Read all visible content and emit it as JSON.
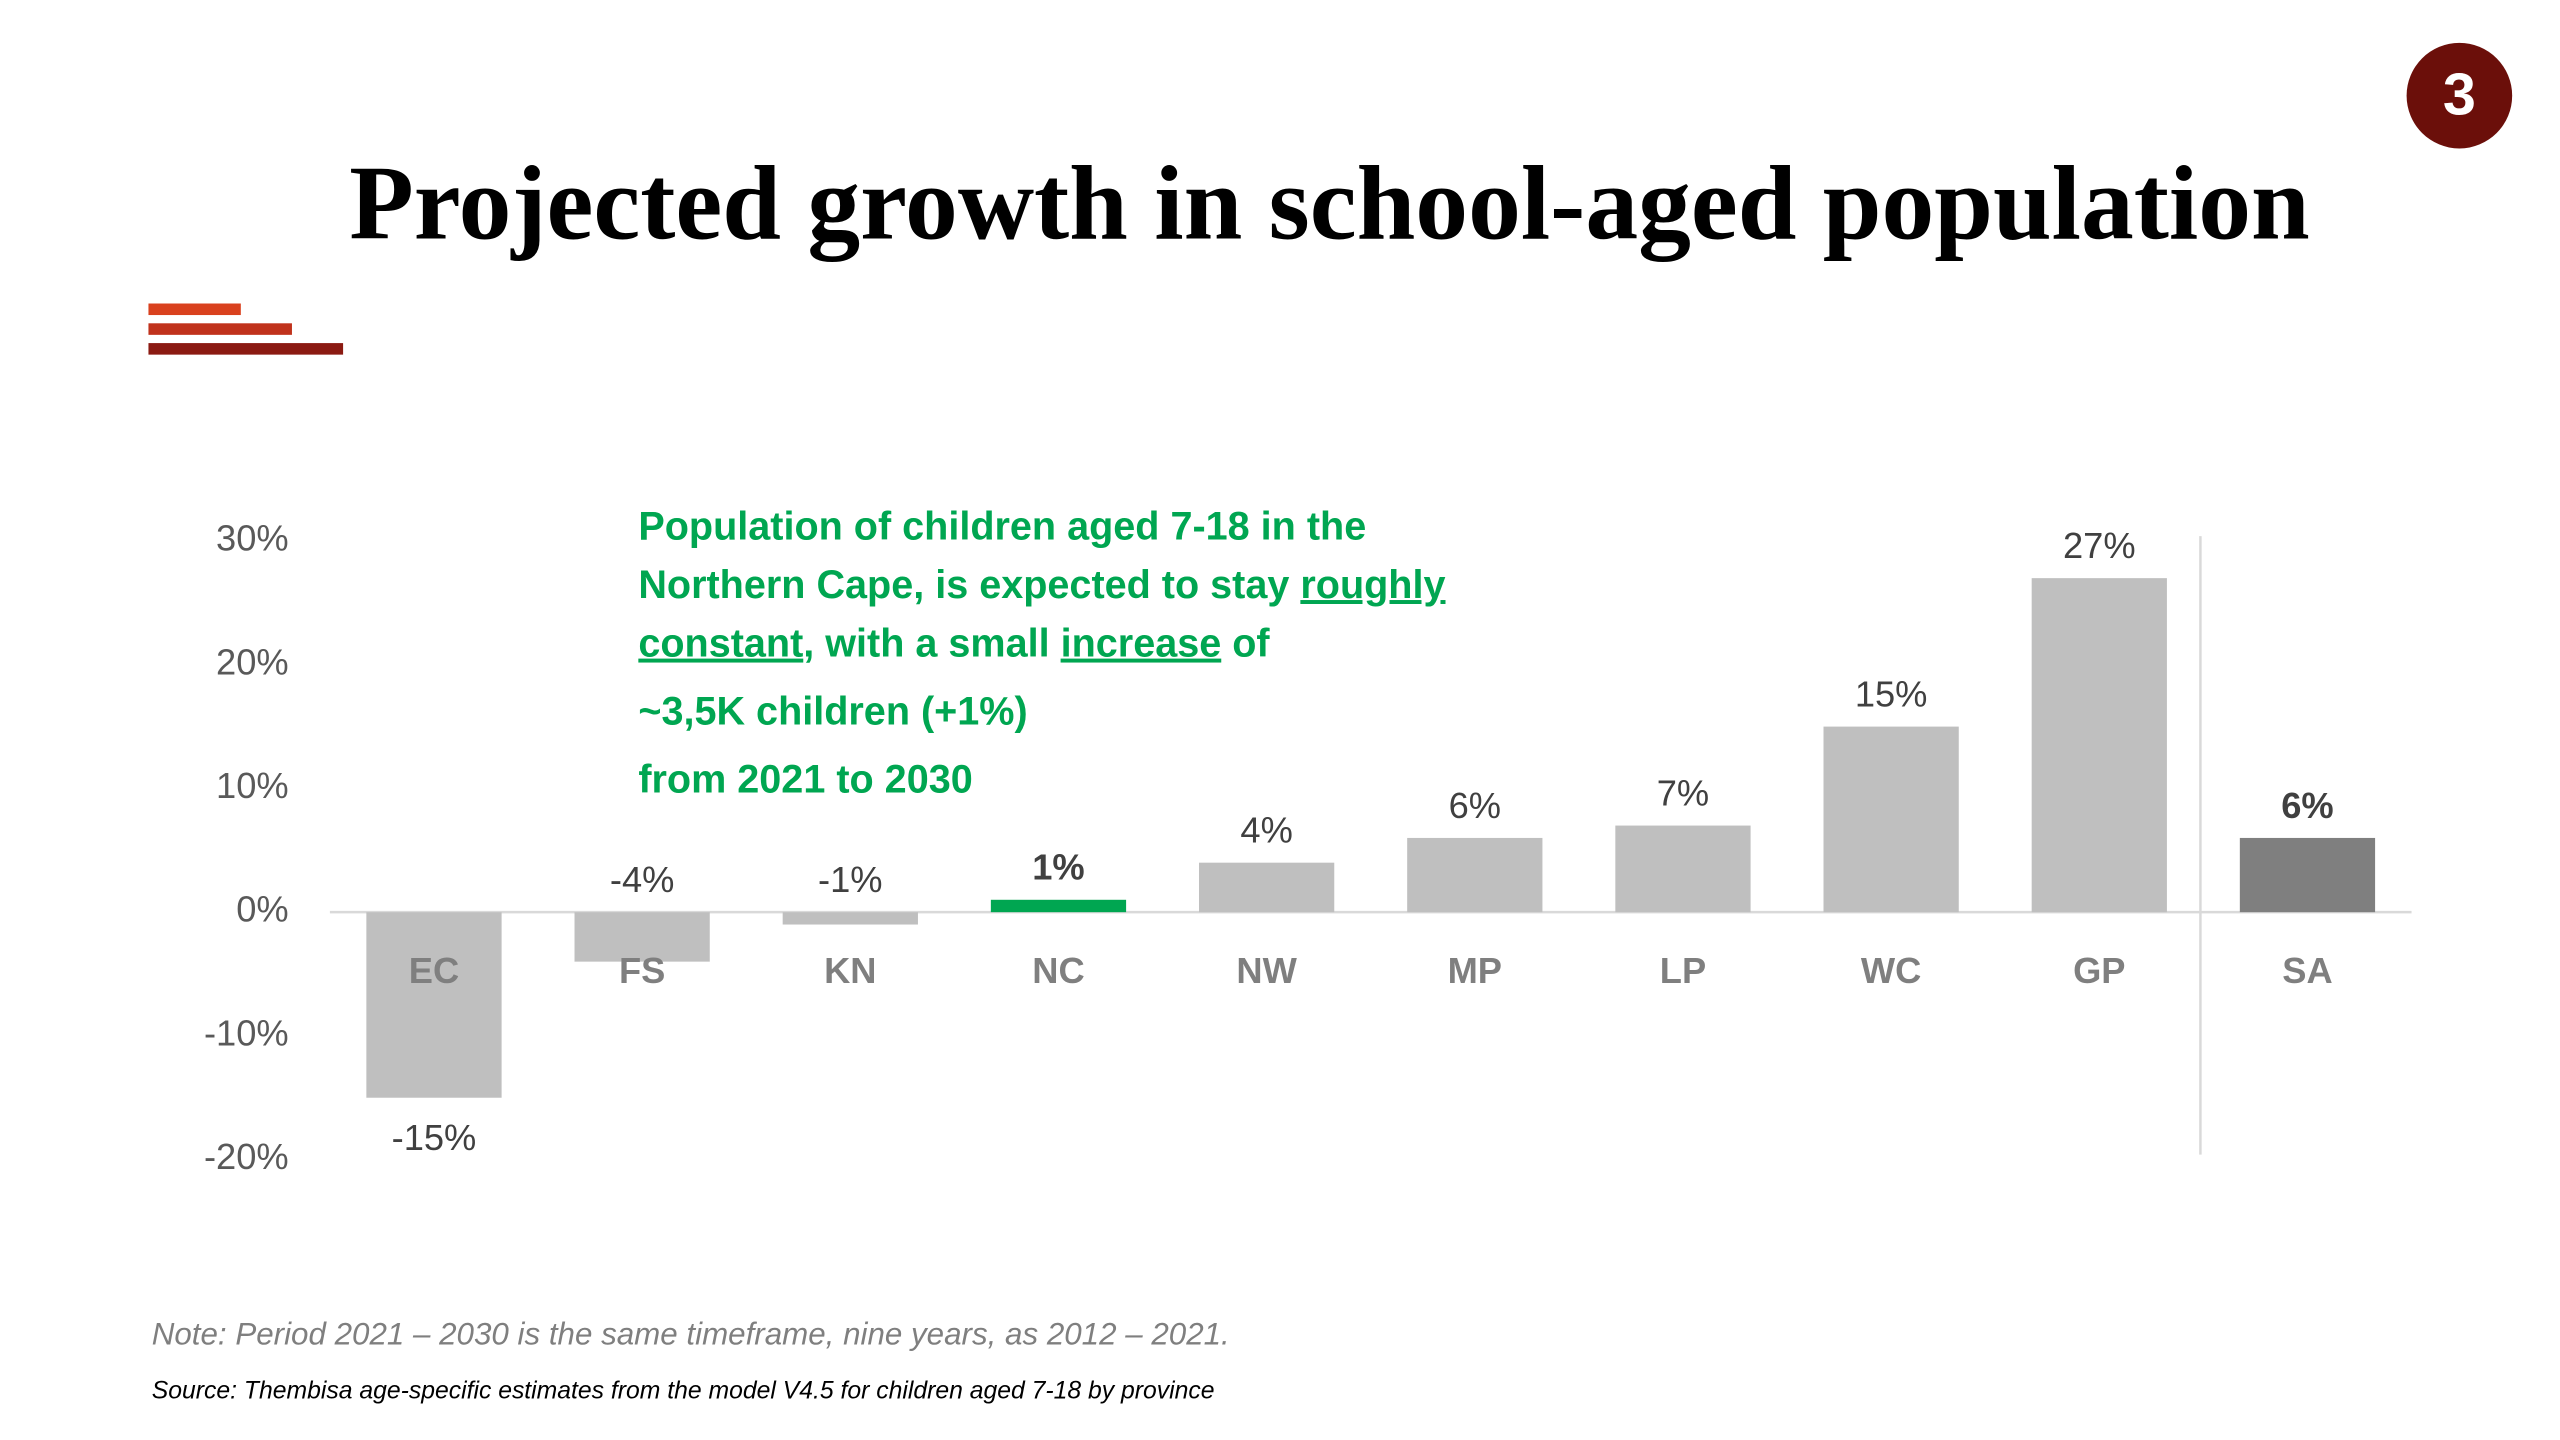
{
  "badge": "3",
  "chart_data": {
    "type": "bar",
    "title": "Projected growth in school-aged population",
    "categories": [
      "EC",
      "FS",
      "KN",
      "NC",
      "NW",
      "MP",
      "LP",
      "WC",
      "GP",
      "SA"
    ],
    "values": [
      -15,
      -4,
      -1,
      1,
      4,
      6,
      7,
      15,
      27,
      6
    ],
    "value_labels": [
      "-15%",
      "-4%",
      "-1%",
      "1%",
      "4%",
      "6%",
      "7%",
      "15%",
      "27%",
      "6%"
    ],
    "colors": [
      "#bfbfbf",
      "#bfbfbf",
      "#bfbfbf",
      "#00a651",
      "#bfbfbf",
      "#bfbfbf",
      "#bfbfbf",
      "#bfbfbf",
      "#bfbfbf",
      "#7f7f7f"
    ],
    "ylim": [
      -20,
      30
    ],
    "yticks": [
      {
        "value": -20,
        "label": "-20%"
      },
      {
        "value": -10,
        "label": "-10%"
      },
      {
        "value": 0,
        "label": "0%"
      },
      {
        "value": 10,
        "label": "10%"
      },
      {
        "value": 20,
        "label": "20%"
      },
      {
        "value": 30,
        "label": "30%"
      }
    ],
    "annotation": {
      "lines": [
        [
          {
            "text": "Population of children aged 7-18 in the",
            "underline": false
          }
        ],
        [
          {
            "text": "Northern Cape, is expected to stay ",
            "underline": false
          },
          {
            "text": "roughly",
            "underline": true
          }
        ],
        [
          {
            "text": "constant",
            "underline": true
          },
          {
            "text": ", with a small ",
            "underline": false
          },
          {
            "text": "increase",
            "underline": true
          },
          {
            "text": " of",
            "underline": false
          }
        ]
      ],
      "highlight": "~3,5K children (+1%)",
      "footer": "from 2021 to 2030"
    },
    "note": "Note: Period 2021 – 2030 is the same timeframe, nine years, as 2012 – 2021.",
    "source": "Source: Thembisa age-specific estimates from the model V4.5 for children aged 7-18 by province"
  }
}
